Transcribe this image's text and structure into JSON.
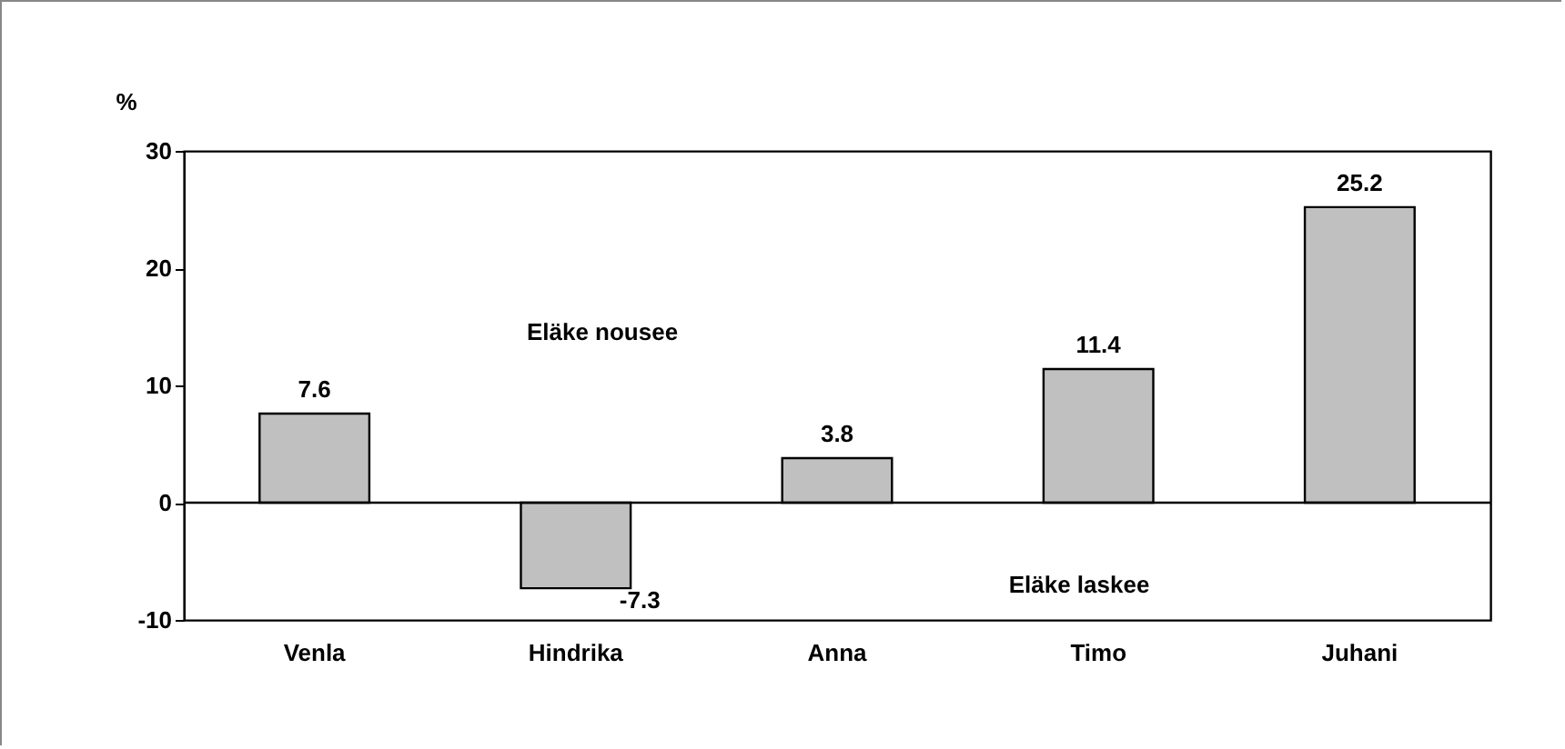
{
  "chart_data": {
    "type": "bar",
    "ylabel": "%",
    "categories": [
      "Venla",
      "Hindrika",
      "Anna",
      "Timo",
      "Juhani"
    ],
    "values": [
      7.6,
      -7.3,
      3.8,
      11.4,
      25.2
    ],
    "color": "#c0c0c0",
    "ylim": [
      -10,
      30
    ],
    "yticks": [
      -10,
      0,
      10,
      20,
      30
    ],
    "data_labels": true,
    "annotations": [
      "Eläke nousee",
      "Eläke laskee"
    ]
  }
}
